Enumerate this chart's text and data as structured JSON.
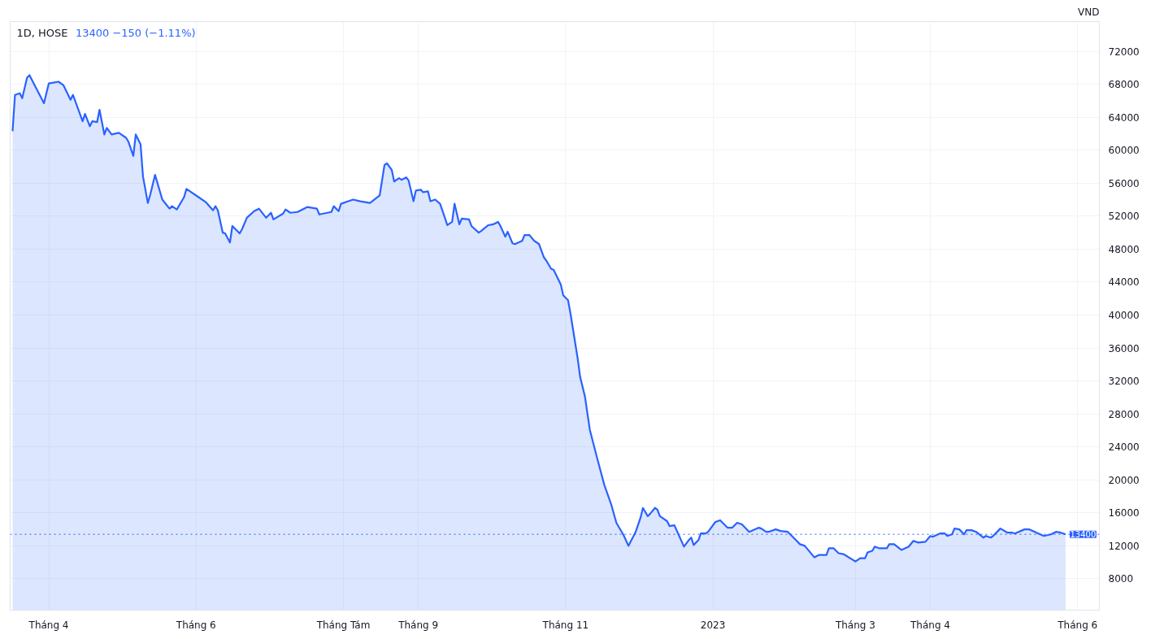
{
  "chart_data": {
    "type": "area",
    "title": "1D, HOSE",
    "subtitle": "13400  −150 (−1.11%)",
    "ylabel": "VND",
    "x": [
      "2022-03-17",
      "2022-03-18",
      "2022-03-20",
      "2022-03-21",
      "2022-03-23",
      "2022-03-24",
      "2022-03-30",
      "2022-04-01",
      "2022-04-05",
      "2022-04-07",
      "2022-04-10",
      "2022-04-11",
      "2022-04-15",
      "2022-04-16",
      "2022-04-18",
      "2022-04-19",
      "2022-04-21",
      "2022-04-22",
      "2022-04-24",
      "2022-04-25",
      "2022-04-27",
      "2022-04-30",
      "2022-05-03",
      "2022-05-04",
      "2022-05-06",
      "2022-05-07",
      "2022-05-09",
      "2022-05-10",
      "2022-05-12",
      "2022-05-13",
      "2022-05-15",
      "2022-05-18",
      "2022-05-21",
      "2022-05-22",
      "2022-05-24",
      "2022-05-27",
      "2022-05-28",
      "2022-06-02",
      "2022-06-05",
      "2022-06-08",
      "2022-06-09",
      "2022-06-10",
      "2022-06-12",
      "2022-06-13",
      "2022-06-15",
      "2022-06-16",
      "2022-06-19",
      "2022-06-20",
      "2022-06-22",
      "2022-06-25",
      "2022-06-27",
      "2022-06-30",
      "2022-07-02",
      "2022-07-03",
      "2022-07-07",
      "2022-07-08",
      "2022-07-10",
      "2022-07-13",
      "2022-07-17",
      "2022-07-21",
      "2022-07-22",
      "2022-07-27",
      "2022-07-28",
      "2022-07-30",
      "2022-07-31",
      "2022-08-03",
      "2022-08-05",
      "2022-08-08",
      "2022-08-12",
      "2022-08-16",
      "2022-08-18",
      "2022-08-19",
      "2022-08-21",
      "2022-08-22",
      "2022-08-24",
      "2022-08-25",
      "2022-08-27",
      "2022-08-28",
      "2022-08-30",
      "2022-08-31",
      "2022-09-02",
      "2022-09-03",
      "2022-09-05",
      "2022-09-06",
      "2022-09-08",
      "2022-09-10",
      "2022-09-12",
      "2022-09-13",
      "2022-09-15",
      "2022-09-16",
      "2022-09-18",
      "2022-09-19",
      "2022-09-22",
      "2022-09-23",
      "2022-09-26",
      "2022-09-27",
      "2022-09-30",
      "2022-10-02",
      "2022-10-04",
      "2022-10-05",
      "2022-10-07",
      "2022-10-08",
      "2022-10-10",
      "2022-10-11",
      "2022-10-14",
      "2022-10-15",
      "2022-10-17",
      "2022-10-19",
      "2022-10-21",
      "2022-10-23",
      "2022-10-24",
      "2022-10-26",
      "2022-10-27",
      "2022-10-30",
      "2022-10-31",
      "2022-11-02",
      "2022-11-03",
      "2022-11-06",
      "2022-11-07",
      "2022-11-09",
      "2022-11-11",
      "2022-11-14",
      "2022-11-17",
      "2022-11-20",
      "2022-11-22",
      "2022-11-25",
      "2022-11-27",
      "2022-11-30",
      "2022-12-02",
      "2022-12-03",
      "2022-12-05",
      "2022-12-06",
      "2022-12-08",
      "2022-12-09",
      "2022-12-10",
      "2022-12-13",
      "2022-12-14",
      "2022-12-16",
      "2022-12-20",
      "2022-12-22",
      "2022-12-23",
      "2022-12-24",
      "2022-12-26",
      "2022-12-27",
      "2022-12-29",
      "2022-12-30",
      "2023-01-02",
      "2023-01-04",
      "2023-01-07",
      "2023-01-09",
      "2023-01-11",
      "2023-01-13",
      "2023-01-16",
      "2023-01-20",
      "2023-01-21",
      "2023-01-23",
      "2023-01-24",
      "2023-01-27",
      "2023-01-29",
      "2023-02-01",
      "2023-02-04",
      "2023-02-06",
      "2023-02-08",
      "2023-02-12",
      "2023-02-14",
      "2023-02-17",
      "2023-02-18",
      "2023-02-20",
      "2023-02-22",
      "2023-02-24",
      "2023-03-01",
      "2023-03-03",
      "2023-03-05",
      "2023-03-06",
      "2023-03-08",
      "2023-03-09",
      "2023-03-11",
      "2023-03-14",
      "2023-03-15",
      "2023-03-17",
      "2023-03-20",
      "2023-03-23",
      "2023-03-25",
      "2023-03-27",
      "2023-03-30",
      "2023-04-01",
      "2023-04-02",
      "2023-04-05",
      "2023-04-07",
      "2023-04-08",
      "2023-04-10",
      "2023-04-11",
      "2023-04-13",
      "2023-04-15",
      "2023-04-16",
      "2023-04-18",
      "2023-04-20",
      "2023-04-23",
      "2023-04-24",
      "2023-04-26",
      "2023-04-27",
      "2023-04-30",
      "2023-05-03",
      "2023-05-05",
      "2023-05-06",
      "2023-05-10",
      "2023-05-12",
      "2023-05-15",
      "2023-05-18",
      "2023-05-21",
      "2023-05-23",
      "2023-05-25",
      "2023-05-27"
    ],
    "series": [
      {
        "color": "#2962ff",
        "values": [
          62300,
          66700,
          66900,
          66300,
          68800,
          69100,
          65700,
          68100,
          68300,
          67900,
          66100,
          66700,
          63500,
          64400,
          62900,
          63500,
          63400,
          64900,
          61900,
          62700,
          61900,
          62100,
          61500,
          61000,
          59300,
          61900,
          60700,
          56800,
          53600,
          54600,
          57000,
          54000,
          52900,
          53200,
          52800,
          54300,
          55300,
          54300,
          53700,
          52700,
          53200,
          52700,
          50000,
          49900,
          48800,
          50800,
          49900,
          50400,
          51800,
          52600,
          52900,
          51800,
          52400,
          51600,
          52300,
          52800,
          52400,
          52500,
          53100,
          52900,
          52200,
          52500,
          53200,
          52600,
          53500,
          53800,
          54000,
          53800,
          53600,
          54500,
          58200,
          58400,
          57600,
          56200,
          56600,
          56400,
          56700,
          56300,
          53800,
          55100,
          55200,
          54900,
          55000,
          53800,
          54000,
          53500,
          51800,
          50900,
          51300,
          53500,
          51000,
          51700,
          51600,
          50800,
          50000,
          50200,
          50900,
          51000,
          51300,
          50800,
          49500,
          50100,
          48700,
          48600,
          49000,
          49700,
          49700,
          49000,
          48600,
          47000,
          46600,
          45600,
          45500,
          43700,
          42400,
          41800,
          40200,
          34700,
          32500,
          30100,
          26100,
          22700,
          19400,
          16900,
          14800,
          13300,
          12000,
          13700,
          15400,
          16600,
          15600,
          15900,
          16600,
          16400,
          15600,
          15000,
          14400,
          14500,
          11900,
          12700,
          13000,
          12100,
          12700,
          13500,
          13500,
          13700,
          14900,
          15100,
          14200,
          14200,
          14800,
          14600,
          13700,
          14200,
          14100,
          13700,
          13700,
          14000,
          13800,
          13700,
          12800,
          12200,
          12000,
          10600,
          10900,
          10900,
          11700,
          11700,
          11100,
          11000,
          10100,
          10500,
          10500,
          11200,
          11400,
          11900,
          11700,
          11700,
          12200,
          12200,
          11500,
          11900,
          12600,
          12400,
          12500,
          13200,
          13100,
          13500,
          13500,
          13200,
          13400,
          14100,
          14000,
          13400,
          13900,
          13900,
          13700,
          13000,
          13200,
          13000,
          13200,
          14100,
          13600,
          13600,
          13500,
          14000,
          14000,
          13600,
          13200,
          13400,
          13700,
          13600,
          13400
        ]
      }
    ],
    "xlim": [
      "2022-03-16",
      "2023-06-10"
    ],
    "xticks": [
      {
        "value": "2022-04-01",
        "label": "Tháng 4"
      },
      {
        "value": "2022-06-01",
        "label": "Tháng 6"
      },
      {
        "value": "2022-08-01",
        "label": "Tháng Tám"
      },
      {
        "value": "2022-09-01",
        "label": "Tháng 9"
      },
      {
        "value": "2022-11-01",
        "label": "Tháng 11"
      },
      {
        "value": "2023-01-01",
        "label": "2023"
      },
      {
        "value": "2023-03-01",
        "label": "Tháng 3"
      },
      {
        "value": "2023-04-01",
        "label": "Tháng 4"
      },
      {
        "value": "2023-06-01",
        "label": "Tháng 6"
      }
    ],
    "ylim": [
      4200,
      75600
    ],
    "yticks": [
      8000,
      12000,
      16000,
      20000,
      24000,
      28000,
      32000,
      36000,
      40000,
      44000,
      48000,
      52000,
      56000,
      60000,
      64000,
      68000,
      72000
    ],
    "ref_lines": [
      {
        "axis": "y",
        "value": 13400,
        "label": "13400",
        "color": "#2962ff",
        "line_style": "dotted"
      }
    ],
    "grid": true
  }
}
